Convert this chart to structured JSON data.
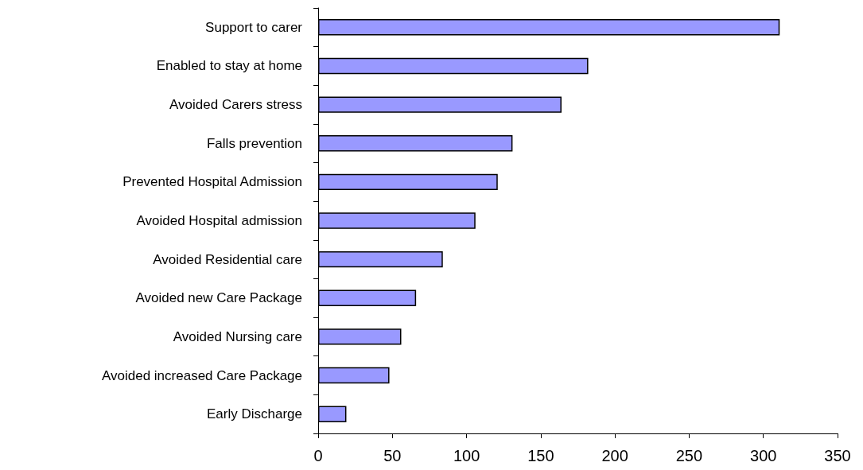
{
  "chart_data": {
    "type": "bar",
    "orientation": "horizontal",
    "categories": [
      "Support to carer",
      "Enabled to stay at home",
      "Avoided Carers stress",
      "Falls prevention",
      "Prevented Hospital Admission",
      "Avoided Hospital admission",
      "Avoided Residential care",
      "Avoided new Care Package",
      "Avoided Nursing care",
      "Avoided increased Care Package",
      "Early Discharge"
    ],
    "values": [
      311,
      182,
      164,
      131,
      121,
      106,
      84,
      66,
      56,
      48,
      19
    ],
    "color": "#9999ff",
    "xlim": [
      0,
      350
    ],
    "xticks": [
      0,
      50,
      100,
      150,
      200,
      250,
      300,
      350
    ],
    "grid": false
  }
}
